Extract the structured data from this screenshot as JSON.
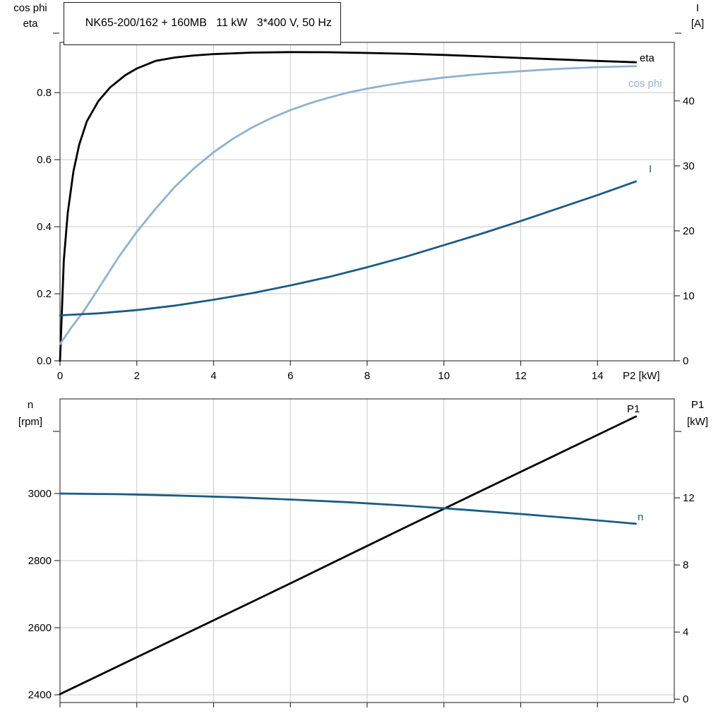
{
  "header": {
    "title": "NK65-200/162 + 160MB   11 kW   3*400 V, 50 Hz"
  },
  "chart_data": [
    {
      "type": "line",
      "xlabel": "P2 [kW]",
      "xlim": [
        0,
        16
      ],
      "x_gridlines": [
        2,
        4,
        6,
        8,
        10,
        12,
        14
      ],
      "x_ticks": [
        [
          0,
          "0"
        ],
        [
          2,
          "2"
        ],
        [
          4,
          "4"
        ],
        [
          6,
          "6"
        ],
        [
          8,
          "8"
        ],
        [
          10,
          "10"
        ],
        [
          12,
          "12"
        ],
        [
          14,
          "14"
        ]
      ],
      "axes": {
        "left": {
          "label_lines": [
            "cos phi",
            "eta"
          ],
          "lim": [
            0,
            0.95
          ],
          "ticks": [
            [
              0,
              "0.0"
            ],
            [
              0.2,
              "0.2"
            ],
            [
              0.4,
              "0.4"
            ],
            [
              0.6,
              "0.6"
            ],
            [
              0.8,
              "0.8"
            ]
          ],
          "gridlines": [
            0.2,
            0.4,
            0.6,
            0.8
          ]
        },
        "right": {
          "label_lines": [
            "I",
            "[A]"
          ],
          "lim": [
            0,
            49
          ],
          "ticks": [
            [
              0,
              "0"
            ],
            [
              10,
              "10"
            ],
            [
              20,
              "20"
            ],
            [
              30,
              "30"
            ],
            [
              40,
              "40"
            ]
          ]
        }
      },
      "series": [
        {
          "name": "eta",
          "axis": "left",
          "color": "#000000",
          "x": [
            0,
            0.1,
            0.2,
            0.35,
            0.5,
            0.7,
            1,
            1.3,
            1.7,
            2,
            2.5,
            3,
            3.5,
            4,
            5,
            6,
            7,
            8,
            9,
            10,
            11,
            12,
            13,
            14,
            15
          ],
          "y": [
            0,
            0.3,
            0.44,
            0.565,
            0.645,
            0.715,
            0.775,
            0.815,
            0.852,
            0.872,
            0.895,
            0.905,
            0.911,
            0.915,
            0.9195,
            0.921,
            0.9205,
            0.9185,
            0.916,
            0.9125,
            0.908,
            0.9035,
            0.899,
            0.8945,
            0.8905
          ]
        },
        {
          "name": "cos phi",
          "axis": "left",
          "color": "#8fb2cf",
          "x": [
            0,
            0.3,
            0.6,
            1,
            1.5,
            2,
            2.5,
            3,
            3.5,
            4,
            4.5,
            5,
            5.5,
            6,
            6.5,
            7,
            7.5,
            8,
            8.5,
            9,
            10,
            11,
            12,
            13,
            14,
            15
          ],
          "y": [
            0.05,
            0.1,
            0.145,
            0.215,
            0.305,
            0.385,
            0.455,
            0.52,
            0.575,
            0.622,
            0.662,
            0.696,
            0.724,
            0.748,
            0.768,
            0.785,
            0.8,
            0.812,
            0.822,
            0.831,
            0.845,
            0.856,
            0.864,
            0.871,
            0.876,
            0.879
          ]
        },
        {
          "name": "I",
          "axis": "right",
          "color": "#1b5c85",
          "x": [
            0,
            1,
            2,
            3,
            4,
            5,
            6,
            7,
            8,
            9,
            10,
            11,
            12,
            13,
            14,
            15
          ],
          "y": [
            7,
            7.3,
            7.8,
            8.5,
            9.4,
            10.4,
            11.6,
            12.9,
            14.4,
            16,
            17.8,
            19.6,
            21.5,
            23.5,
            25.5,
            27.6
          ]
        }
      ]
    },
    {
      "type": "line",
      "xlabel": "",
      "xlim": [
        0,
        16
      ],
      "x_gridlines": [
        2,
        4,
        6,
        8,
        10,
        12,
        14
      ],
      "x_ticks": [],
      "axes": {
        "left": {
          "label_lines": [
            "n",
            "[rpm]"
          ],
          "lim": [
            2377,
            3282
          ],
          "ticks": [
            [
              2400,
              "2400"
            ],
            [
              2600,
              "2600"
            ],
            [
              2800,
              "2800"
            ],
            [
              3000,
              "3000"
            ]
          ],
          "gridlines": [
            2400,
            2600,
            2800,
            3000
          ]
        },
        "right": {
          "label_lines": [
            "P1",
            "[kW]"
          ],
          "lim": [
            -0.2,
            17.9
          ],
          "ticks": [
            [
              0,
              "0"
            ],
            [
              4,
              "4"
            ],
            [
              8,
              "8"
            ],
            [
              12,
              "12"
            ]
          ]
        }
      },
      "series": [
        {
          "name": "P1",
          "axis": "right",
          "color": "#000000",
          "x": [
            0,
            3,
            6,
            9,
            12,
            15
          ],
          "y": [
            0.3,
            3.6,
            6.9,
            10.25,
            13.55,
            16.85
          ]
        },
        {
          "name": "n",
          "axis": "left",
          "color": "#1b5c85",
          "x": [
            0,
            1.5,
            3,
            4.5,
            6,
            7.5,
            9,
            10.5,
            12,
            13.5,
            15
          ],
          "y": [
            3000,
            2998,
            2994,
            2989,
            2982,
            2974,
            2964,
            2952,
            2939,
            2925,
            2910
          ]
        }
      ]
    }
  ]
}
